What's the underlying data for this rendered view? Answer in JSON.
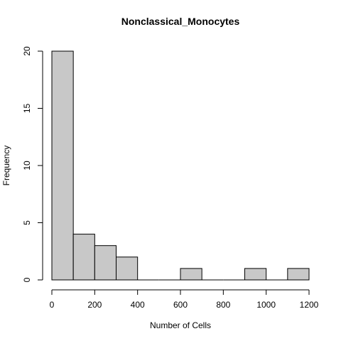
{
  "chart_data": {
    "type": "bar",
    "title": "Nonclassical_Monocytes",
    "xlabel": "Number of Cells",
    "ylabel": "Frequency",
    "bin_edges": [
      0,
      100,
      200,
      300,
      400,
      500,
      600,
      700,
      800,
      900,
      1000,
      1100,
      1200
    ],
    "values": [
      20,
      4,
      3,
      2,
      0,
      0,
      1,
      0,
      0,
      1,
      0,
      1
    ],
    "xlim": [
      0,
      1200
    ],
    "ylim": [
      0,
      20
    ],
    "x_ticks": [
      0,
      200,
      400,
      600,
      800,
      1000,
      1200
    ],
    "y_ticks": [
      0,
      5,
      10,
      15,
      20
    ],
    "grid": false,
    "bar_color": "#c8c8c8"
  }
}
